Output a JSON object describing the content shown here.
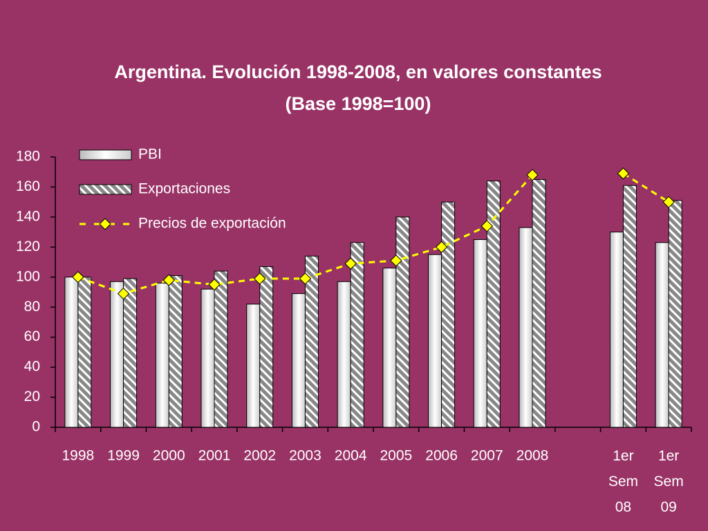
{
  "chart_data": {
    "type": "bar",
    "title": "Argentina. Evolución 1998-2008, en valores constantes",
    "subtitle": "(Base 1998=100)",
    "categories": [
      "1998",
      "1999",
      "2000",
      "2001",
      "2002",
      "2003",
      "2004",
      "2005",
      "2006",
      "2007",
      "2008",
      null,
      "1er Sem 08",
      "1er Sem 09"
    ],
    "series": [
      {
        "name": "PBI",
        "type": "bar",
        "color": "#ffffff",
        "values": [
          100,
          97,
          96,
          92,
          82,
          89,
          97,
          106,
          115,
          125,
          133,
          null,
          130,
          123
        ]
      },
      {
        "name": "Exportaciones",
        "type": "bar",
        "color": "#888888",
        "values": [
          100,
          99,
          101,
          104,
          107,
          114,
          123,
          140,
          150,
          164,
          165,
          null,
          161,
          151
        ]
      },
      {
        "name": "Precios de exportación",
        "type": "line",
        "color": "#ffff00",
        "values": [
          100,
          89,
          98,
          95,
          99,
          99,
          109,
          111,
          120,
          134,
          168,
          null,
          169,
          150
        ]
      }
    ],
    "ylim": [
      0,
      180
    ],
    "yticks": [
      0,
      20,
      40,
      60,
      80,
      100,
      120,
      140,
      160,
      180
    ],
    "legend": "top-left"
  }
}
